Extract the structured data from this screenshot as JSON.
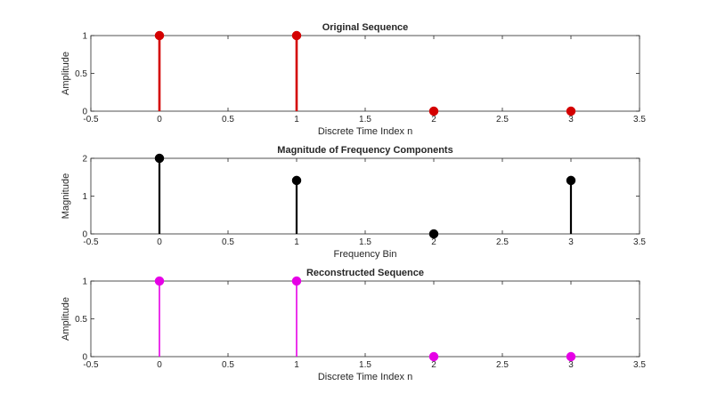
{
  "chart_data": [
    {
      "type": "stem",
      "title": "Original Sequence",
      "xlabel": "Discrete Time Index n",
      "ylabel": "Amplitude",
      "xlim": [
        -0.5,
        3.5
      ],
      "ylim": [
        0,
        1
      ],
      "xticks": [
        "-0.5",
        "0",
        "0.5",
        "1",
        "1.5",
        "2",
        "2.5",
        "3",
        "3.5"
      ],
      "yticks": [
        "0",
        "0.5",
        "1"
      ],
      "x": [
        0,
        1,
        2,
        3
      ],
      "y": [
        1,
        1,
        0,
        0
      ],
      "color": "#d40000",
      "grid": false
    },
    {
      "type": "stem",
      "title": "Magnitude of Frequency Components",
      "xlabel": "Frequency Bin",
      "ylabel": "Magnitude",
      "xlim": [
        -0.5,
        3.5
      ],
      "ylim": [
        0,
        2
      ],
      "xticks": [
        "-0.5",
        "0",
        "0.5",
        "1",
        "1.5",
        "2",
        "2.5",
        "3",
        "3.5"
      ],
      "yticks": [
        "0",
        "1",
        "2"
      ],
      "x": [
        0,
        1,
        2,
        3
      ],
      "y": [
        2,
        1.414,
        0,
        1.414
      ],
      "color": "#000000",
      "grid": false
    },
    {
      "type": "stem",
      "title": "Reconstructed Sequence",
      "xlabel": "Discrete Time Index n",
      "ylabel": "Amplitude",
      "xlim": [
        -0.5,
        3.5
      ],
      "ylim": [
        0,
        1
      ],
      "xticks": [
        "-0.5",
        "0",
        "0.5",
        "1",
        "1.5",
        "2",
        "2.5",
        "3",
        "3.5"
      ],
      "yticks": [
        "0",
        "0.5",
        "1"
      ],
      "x": [
        0,
        1,
        2,
        3
      ],
      "y": [
        1,
        1,
        0,
        0
      ],
      "color": "#e600e6",
      "grid": false
    }
  ]
}
